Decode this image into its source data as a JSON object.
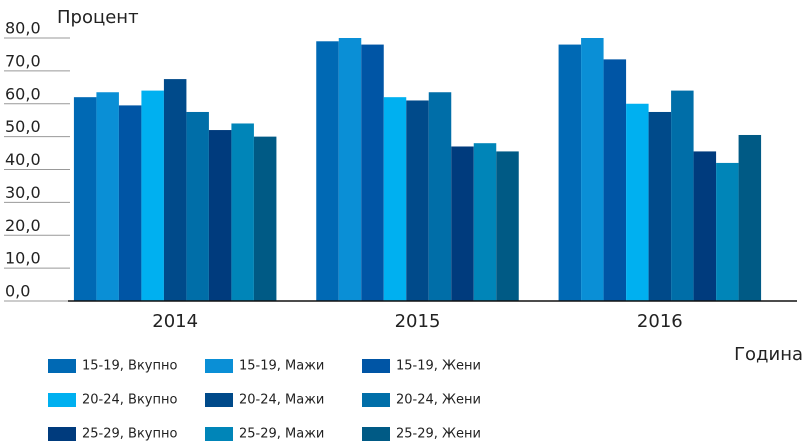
{
  "chart_data": {
    "type": "bar",
    "y_label": "Процент",
    "x_label": "Година",
    "categories": [
      "2014",
      "2015",
      "2016"
    ],
    "series": [
      {
        "name": "15-19, Вкупно",
        "color": "#0069b4",
        "values": [
          62,
          79,
          78
        ]
      },
      {
        "name": "15-19, Мажи",
        "color": "#0a8fd6",
        "values": [
          63.5,
          80,
          80
        ]
      },
      {
        "name": "15-19, Жени",
        "color": "#0055a5",
        "values": [
          59.5,
          78,
          73.5
        ]
      },
      {
        "name": "20-24, Вкупно",
        "color": "#00b0f0",
        "values": [
          64,
          62,
          60
        ]
      },
      {
        "name": "20-24, Мажи",
        "color": "#004a8a",
        "values": [
          67.5,
          61,
          57.5
        ]
      },
      {
        "name": "20-24, Жени",
        "color": "#006ea8",
        "values": [
          57.5,
          63.5,
          64
        ]
      },
      {
        "name": "25-29, Вкупно",
        "color": "#003b7d",
        "values": [
          52,
          47,
          45.5
        ]
      },
      {
        "name": "25-29, Мажи",
        "color": "#0085b8",
        "values": [
          54,
          48,
          42
        ]
      },
      {
        "name": "25-29, Жени",
        "color": "#005a85",
        "values": [
          50,
          45.5,
          50.5
        ]
      }
    ],
    "ylim": [
      0,
      80
    ],
    "yticks": [
      {
        "value": 0,
        "label": "0,0"
      },
      {
        "value": 10,
        "label": "10,0"
      },
      {
        "value": 20,
        "label": "20,0"
      },
      {
        "value": 30,
        "label": "30,0"
      },
      {
        "value": 40,
        "label": "40,0"
      },
      {
        "value": 50,
        "label": "50,0"
      },
      {
        "value": 60,
        "label": "60,0"
      },
      {
        "value": 70,
        "label": "70,0"
      },
      {
        "value": 80,
        "label": "80,0"
      }
    ],
    "legend": "bottom"
  }
}
